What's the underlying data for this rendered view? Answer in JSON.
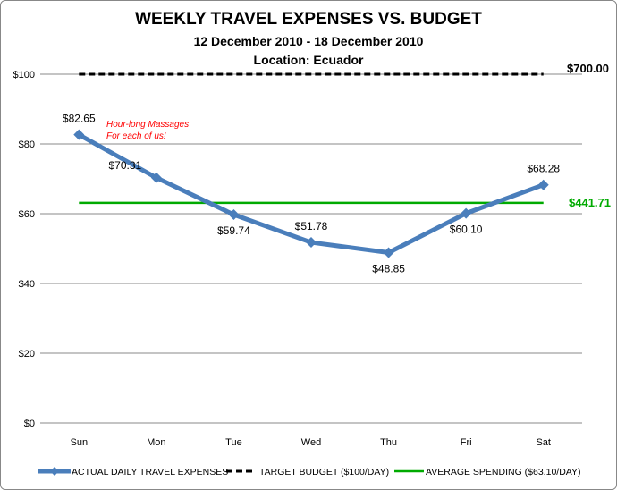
{
  "chart_data": {
    "type": "line",
    "title": "WEEKLY TRAVEL EXPENSES VS. BUDGET",
    "subtitle": "12 December 2010 - 18 December 2010",
    "subtitle2": "Location: Ecuador",
    "categories": [
      "Sun",
      "Mon",
      "Tue",
      "Wed",
      "Thu",
      "Fri",
      "Sat"
    ],
    "ylim": [
      0,
      100
    ],
    "yticks": [
      0,
      20,
      40,
      60,
      80,
      100
    ],
    "ytick_labels": [
      "$0",
      "$20",
      "$40",
      "$60",
      "$80",
      "$100"
    ],
    "grid": true,
    "legend_placement": "bottom",
    "series": [
      {
        "name": "ACTUAL DAILY TRAVEL EXPENSES",
        "values": [
          82.65,
          70.31,
          59.74,
          51.78,
          48.85,
          60.1,
          68.28
        ],
        "labels": [
          "$82.65",
          "$70.31",
          "$59.74",
          "$51.78",
          "$48.85",
          "$60.10",
          "$68.28"
        ],
        "color": "#4a7ebb",
        "style": "solid-markers"
      },
      {
        "name": "TARGET BUDGET ($100/DAY)",
        "value": 100,
        "color": "#000000",
        "style": "dashed",
        "end_label": "$700.00"
      },
      {
        "name": "AVERAGE SPENDING ($63.10/DAY)",
        "value": 63.1,
        "color": "#00aa00",
        "style": "solid",
        "end_label": "$441.71"
      }
    ],
    "annotations": [
      {
        "text_lines": [
          "Hour-long Massages",
          "For each of us!"
        ],
        "target": "Sun",
        "color": "#ff0000"
      }
    ]
  }
}
